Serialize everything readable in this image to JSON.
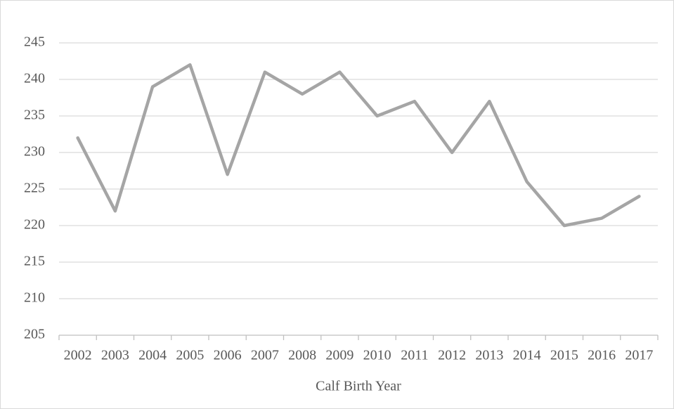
{
  "chart_data": {
    "type": "line",
    "x_label": "Calf Birth Year",
    "categories": [
      "2002",
      "2003",
      "2004",
      "2005",
      "2006",
      "2007",
      "2008",
      "2009",
      "2010",
      "2011",
      "2012",
      "2013",
      "2014",
      "2015",
      "2016",
      "2017"
    ],
    "values": [
      232,
      222,
      239,
      242,
      227,
      241,
      238,
      241,
      235,
      237,
      230,
      237,
      226,
      220,
      221,
      224
    ],
    "color": "#a5a5a5",
    "ylim": [
      205,
      245
    ],
    "yticks": [
      205,
      210,
      215,
      220,
      225,
      230,
      235,
      240,
      245
    ],
    "grid": true
  }
}
